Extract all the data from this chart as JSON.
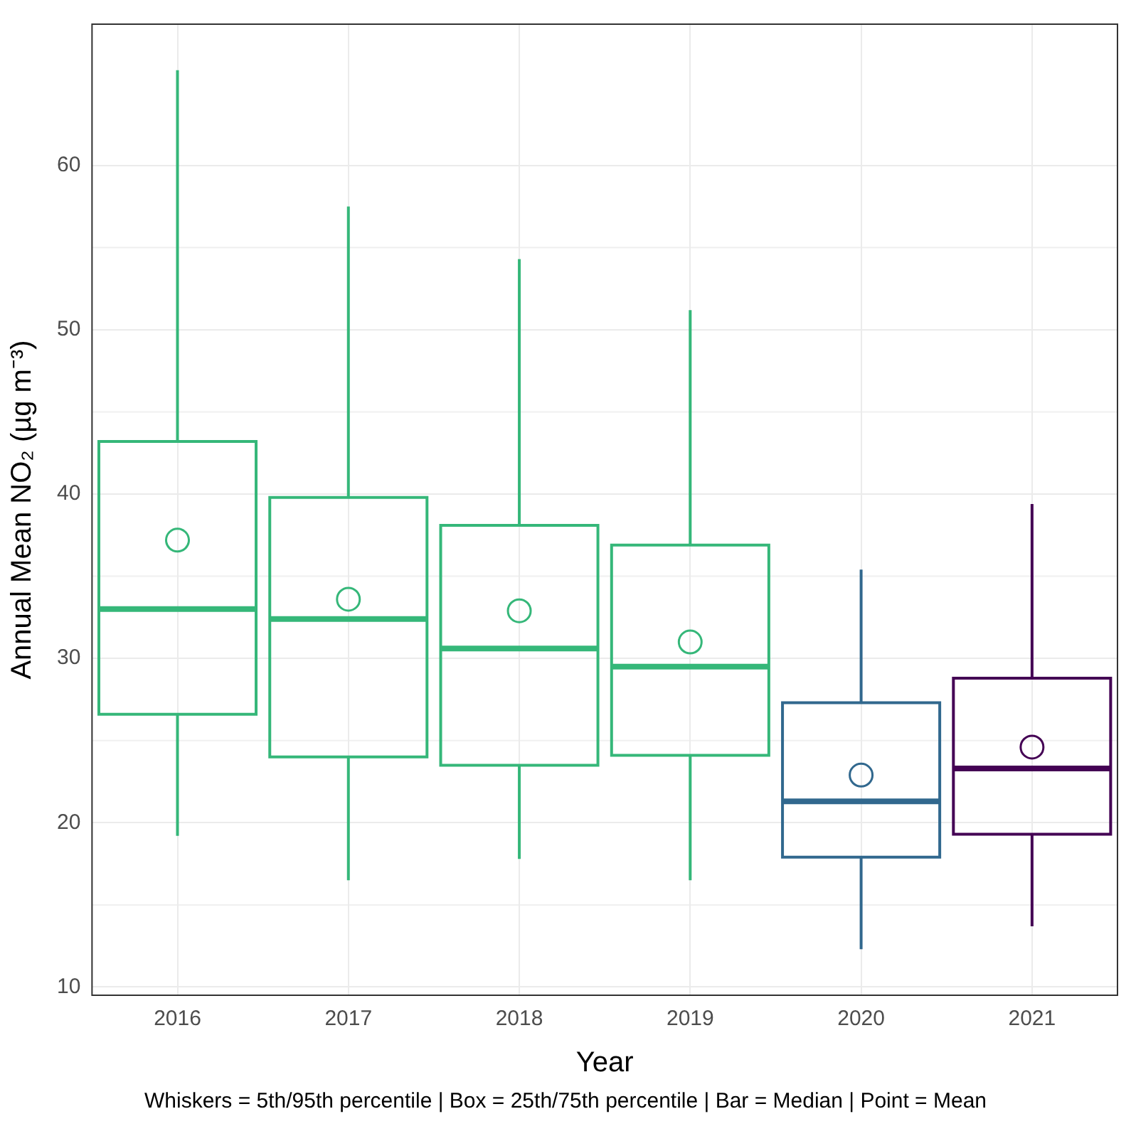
{
  "chart_data": {
    "type": "box",
    "xlabel": "Year",
    "ylabel": "Annual Mean NO₂ (µg m⁻³)",
    "categories": [
      "2016",
      "2017",
      "2018",
      "2019",
      "2020",
      "2021"
    ],
    "colors": [
      "#35b779",
      "#35b779",
      "#35b779",
      "#35b779",
      "#31688e",
      "#440154"
    ],
    "boxes": [
      {
        "low": 19.2,
        "q1": 26.6,
        "median": 33.0,
        "q3": 43.2,
        "high": 65.8,
        "mean": 37.2
      },
      {
        "low": 16.5,
        "q1": 24.0,
        "median": 32.4,
        "q3": 39.8,
        "high": 57.5,
        "mean": 33.6
      },
      {
        "low": 17.8,
        "q1": 23.5,
        "median": 30.6,
        "q3": 38.1,
        "high": 54.3,
        "mean": 32.9
      },
      {
        "low": 16.5,
        "q1": 24.1,
        "median": 29.5,
        "q3": 36.9,
        "high": 51.2,
        "mean": 31.0
      },
      {
        "low": 12.3,
        "q1": 17.9,
        "median": 21.3,
        "q3": 27.3,
        "high": 35.4,
        "mean": 22.9
      },
      {
        "low": 13.7,
        "q1": 19.3,
        "median": 23.3,
        "q3": 28.8,
        "high": 39.4,
        "mean": 24.6
      }
    ],
    "ylim": [
      9.5,
      68.6
    ],
    "yticks": [
      10,
      20,
      30,
      40,
      50,
      60
    ],
    "grid": true,
    "legend": false,
    "annotations": [
      "Whiskers = 5th/95th percentile | Box = 25th/75th percentile | Bar = Median | Point = Mean"
    ]
  }
}
